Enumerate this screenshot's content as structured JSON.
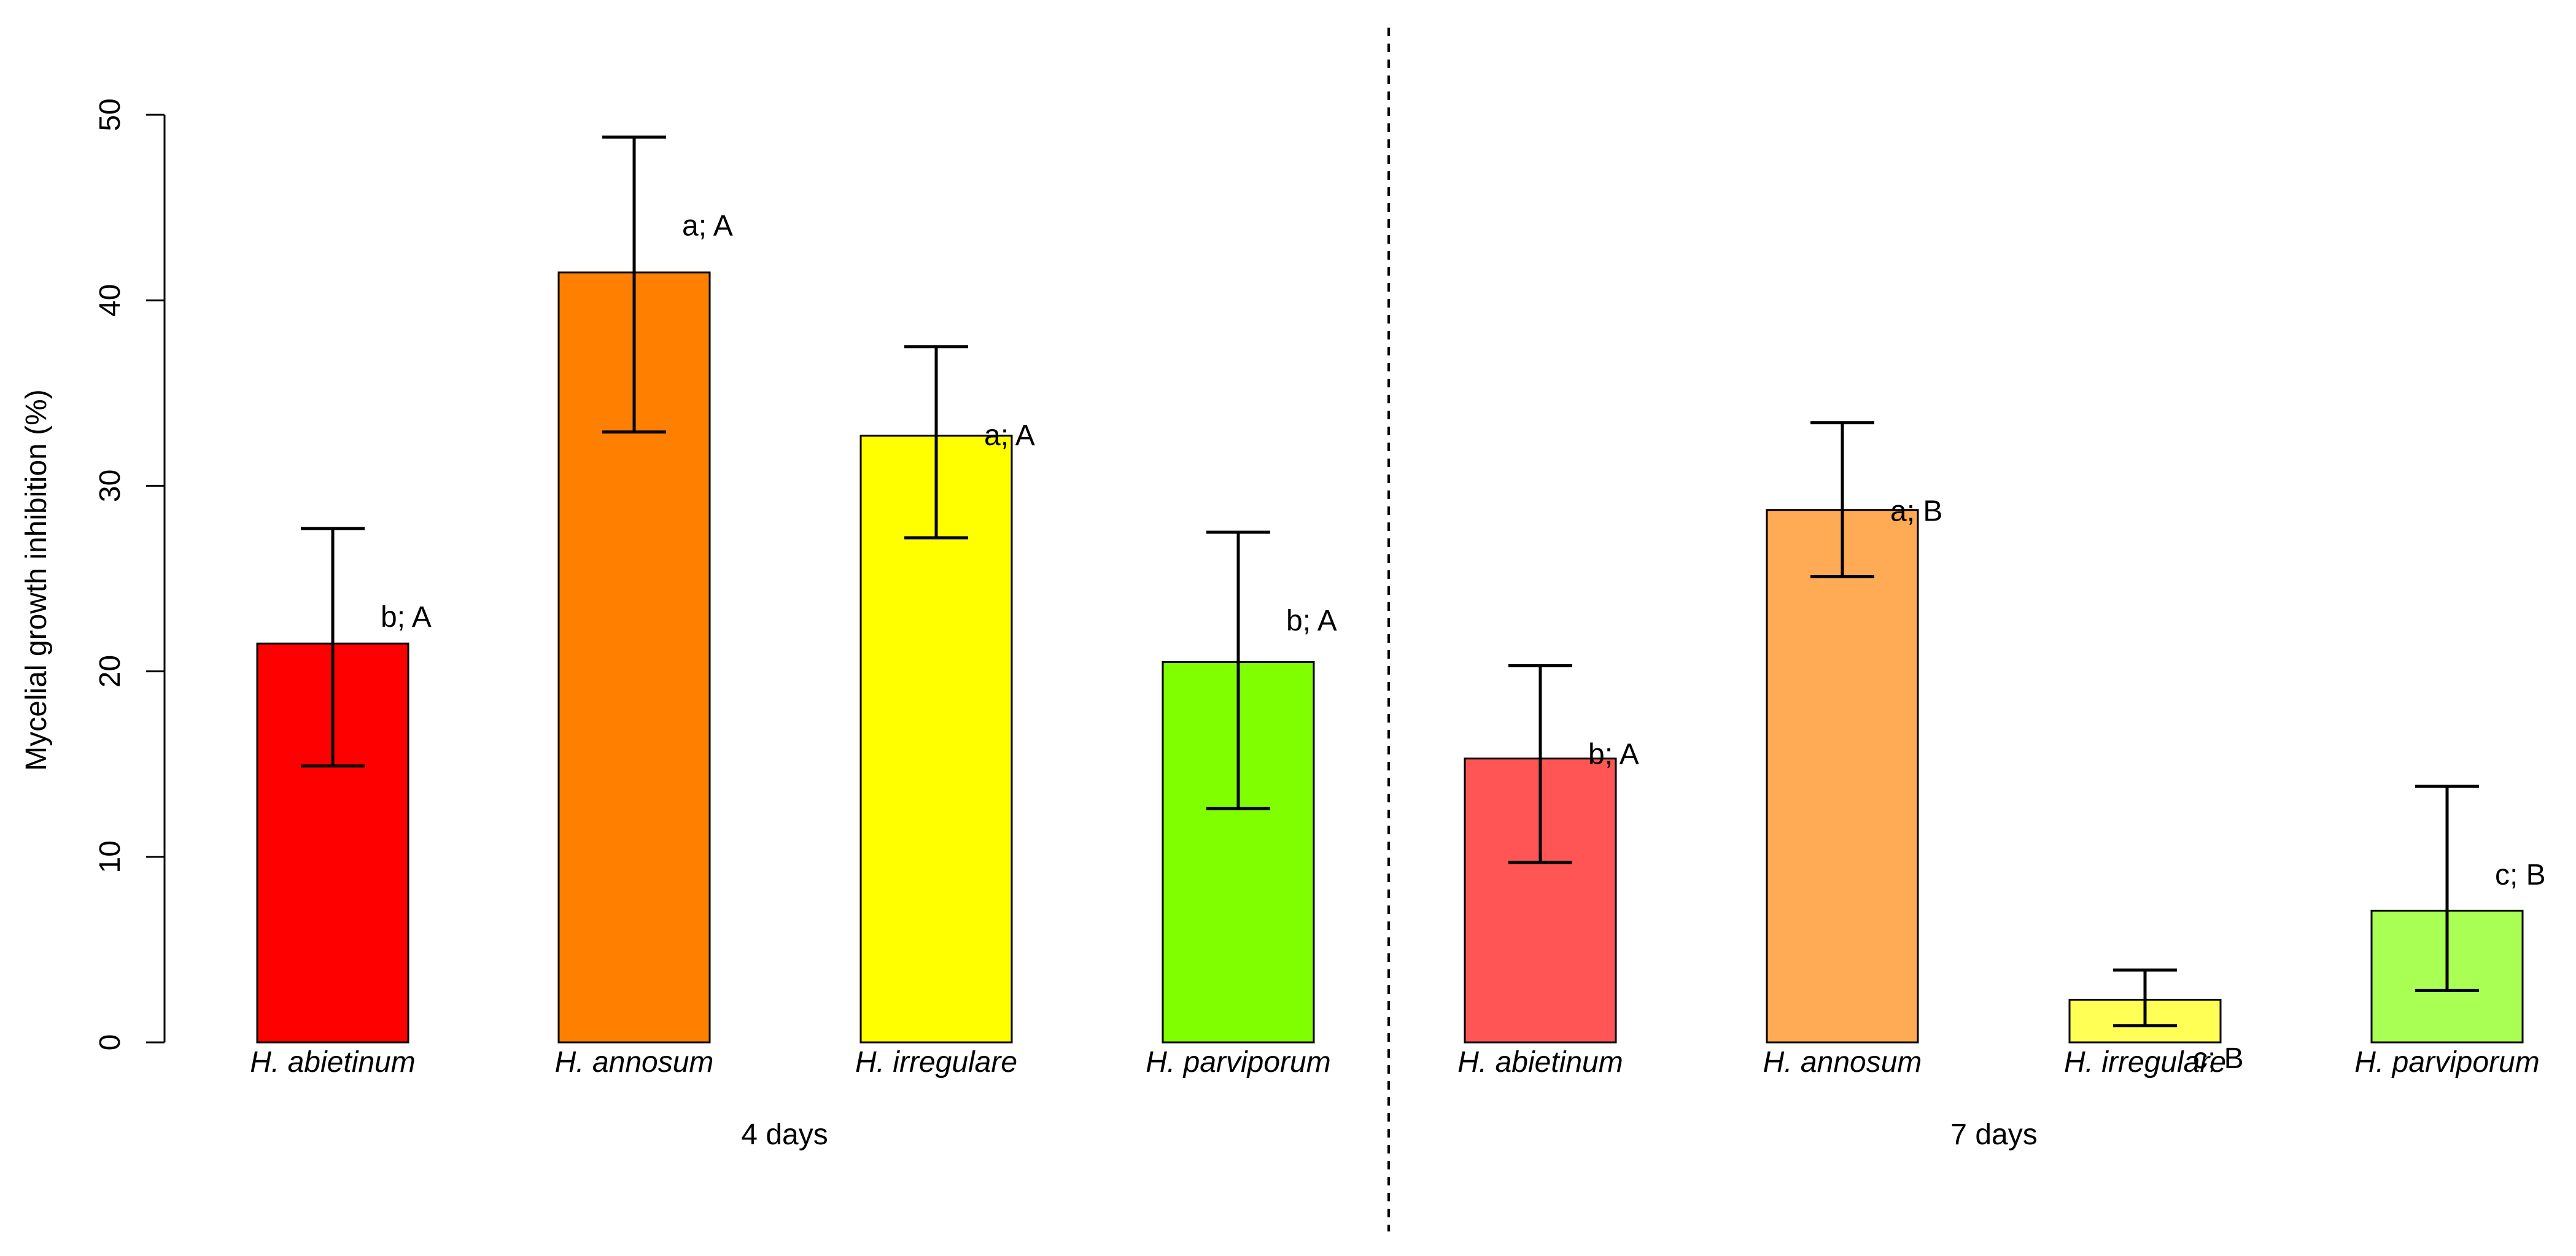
{
  "chart_data": {
    "type": "bar",
    "ylabel": "Mycelial growth inhibition  (%)",
    "ylim": [
      0,
      50
    ],
    "yticks": [
      0,
      10,
      20,
      30,
      40,
      50
    ],
    "groups": [
      {
        "label": "4 days",
        "bars": [
          {
            "category": "H. abietinum",
            "value": 21.5,
            "err_low": 14.9,
            "err_high": 27.7,
            "sig": "b; A",
            "color": "#ff0000"
          },
          {
            "category": "H. annosum",
            "value": 41.5,
            "err_low": 32.9,
            "err_high": 48.8,
            "sig": "a; A",
            "color": "#ff7f00"
          },
          {
            "category": "H. irregulare",
            "value": 32.7,
            "err_low": 27.2,
            "err_high": 37.5,
            "sig": "a; A",
            "color": "#ffff00"
          },
          {
            "category": "H. parviporum",
            "value": 20.5,
            "err_low": 12.6,
            "err_high": 27.5,
            "sig": "b; A",
            "color": "#7fff00"
          }
        ]
      },
      {
        "label": "7 days",
        "bars": [
          {
            "category": "H. abietinum",
            "value": 15.3,
            "err_low": 9.7,
            "err_high": 20.3,
            "sig": "b; A",
            "color": "#ff5555"
          },
          {
            "category": "H. annosum",
            "value": 28.7,
            "err_low": 25.1,
            "err_high": 33.4,
            "sig": "a; B",
            "color": "#ffaa55"
          },
          {
            "category": "H. irregulare",
            "value": 2.3,
            "err_low": 0.9,
            "err_high": 3.9,
            "sig": "c; B",
            "color": "#ffff55"
          },
          {
            "category": "H. parviporum",
            "value": 7.1,
            "err_low": 2.8,
            "err_high": 13.8,
            "sig": "c; B",
            "color": "#aaff55"
          }
        ]
      }
    ]
  }
}
